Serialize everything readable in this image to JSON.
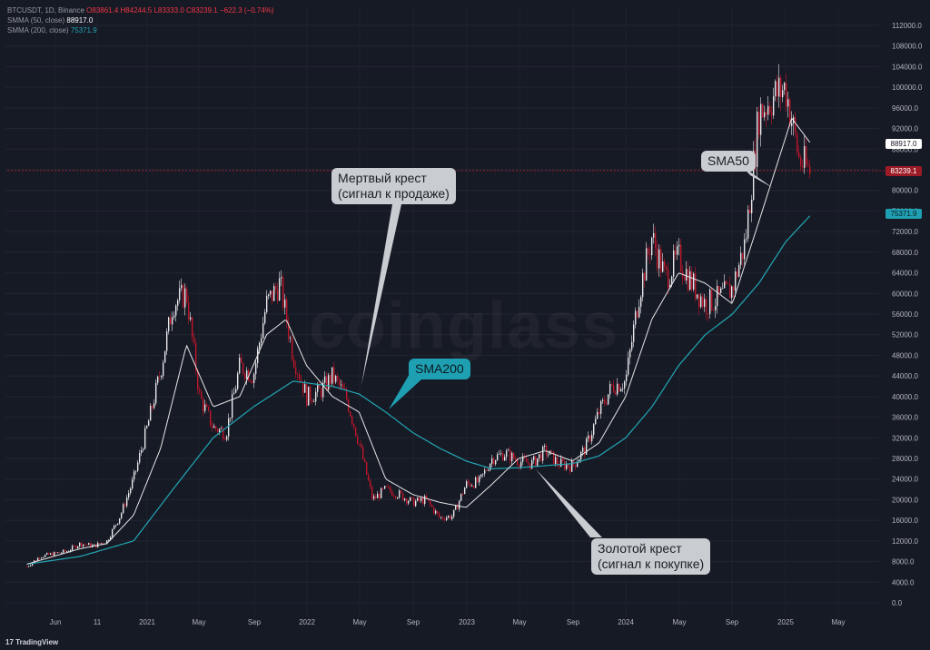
{
  "legend": {
    "symbol_line": "BTCUSDT, 1D, Binance",
    "ohlc": "O83861.4 H84244.5 L83333.0 C83239.1 −622.3 (−0.74%)",
    "sma50_label": "SMMA (50, close)",
    "sma50_value": "88917.0",
    "sma200_label": "SMMA (200, close)",
    "sma200_value": "75371.9"
  },
  "watermark": "coinglass",
  "price_tags": {
    "sma50": "88917.0",
    "last": "83239.1",
    "sma200": "75371.9"
  },
  "callouts": {
    "death_cross": [
      "Мертвый крест",
      "(сигнал к продаже)"
    ],
    "golden_cross": [
      "Золотой крест",
      "(сигнал к покупке)"
    ],
    "sma200": "SMA200",
    "sma50": "SMA50"
  },
  "footer": "TradingView",
  "colors": {
    "background": "#161a25",
    "candle_up": "#e8e8ea",
    "candle_down": "#c0152a",
    "sma50": "#e6e6e6",
    "sma200": "#22a7b5",
    "last_price": "#9c1b27"
  },
  "chart_data": {
    "type": "line",
    "title": "",
    "x_ticks": [
      "Jun",
      "11",
      "2021",
      "May",
      "Sep",
      "2022",
      "May",
      "Sep",
      "2023",
      "May",
      "Sep",
      "2024",
      "May",
      "Sep",
      "2025",
      "May"
    ],
    "y_ticks": [
      0,
      4000,
      8000,
      12000,
      16000,
      20000,
      24000,
      28000,
      32000,
      36000,
      40000,
      44000,
      48000,
      52000,
      56000,
      60000,
      64000,
      68000,
      72000,
      76000,
      80000,
      84000,
      88000,
      92000,
      96000,
      100000,
      104000,
      108000,
      112000
    ],
    "ylim": [
      -2000,
      116000
    ],
    "series": [
      {
        "name": "BTCUSDT",
        "x": [
          "2020-04-01",
          "2020-05-01",
          "2020-06-01",
          "2020-07-01",
          "2020-08-01",
          "2020-09-01",
          "2020-10-01",
          "2020-11-01",
          "2020-12-01",
          "2021-01-01",
          "2021-02-01",
          "2021-03-01",
          "2021-04-01",
          "2021-05-01",
          "2021-06-01",
          "2021-07-01",
          "2021-08-01",
          "2021-09-01",
          "2021-10-01",
          "2021-11-01",
          "2021-12-01",
          "2022-01-01",
          "2022-02-01",
          "2022-03-01",
          "2022-04-01",
          "2022-05-01",
          "2022-06-01",
          "2022-07-01",
          "2022-08-01",
          "2022-09-01",
          "2022-10-01",
          "2022-11-01",
          "2022-12-01",
          "2023-01-01",
          "2023-02-01",
          "2023-03-01",
          "2023-04-01",
          "2023-05-01",
          "2023-06-01",
          "2023-07-01",
          "2023-08-01",
          "2023-09-01",
          "2023-10-01",
          "2023-11-01",
          "2023-12-01",
          "2024-01-01",
          "2024-02-01",
          "2024-03-01",
          "2024-04-01",
          "2024-05-01",
          "2024-06-01",
          "2024-07-01",
          "2024-08-01",
          "2024-09-01",
          "2024-10-01",
          "2024-11-01",
          "2024-12-01",
          "2025-01-01",
          "2025-02-01",
          "2025-03-01"
        ],
        "values": [
          7000,
          9000,
          9500,
          10000,
          11500,
          11000,
          12000,
          17000,
          24000,
          34000,
          45000,
          58000,
          60000,
          40000,
          34000,
          33000,
          46000,
          44000,
          58000,
          62000,
          48000,
          40000,
          41000,
          44000,
          40000,
          31000,
          20000,
          22000,
          21000,
          19500,
          20000,
          16500,
          16800,
          23000,
          23500,
          28000,
          29000,
          27500,
          27000,
          29500,
          27000,
          26500,
          30000,
          37000,
          42000,
          43000,
          60000,
          71000,
          63000,
          67000,
          62000,
          58000,
          59000,
          61000,
          70000,
          95000,
          98000,
          100000,
          86000,
          83239
        ]
      },
      {
        "name": "SMA50",
        "x": [
          "2020-04-01",
          "2020-06-01",
          "2020-08-01",
          "2020-10-01",
          "2020-12-01",
          "2021-02-01",
          "2021-04-01",
          "2021-06-01",
          "2021-08-01",
          "2021-10-01",
          "2021-11-15",
          "2022-01-01",
          "2022-03-01",
          "2022-05-01",
          "2022-07-01",
          "2022-09-01",
          "2022-11-01",
          "2023-01-01",
          "2023-03-01",
          "2023-05-01",
          "2023-07-01",
          "2023-09-01",
          "2023-11-01",
          "2024-01-01",
          "2024-03-01",
          "2024-05-01",
          "2024-07-01",
          "2024-09-01",
          "2024-11-01",
          "2025-01-15",
          "2025-03-01"
        ],
        "values": [
          7500,
          9000,
          10500,
          11500,
          17000,
          30000,
          50000,
          38000,
          40000,
          52000,
          55000,
          46000,
          40000,
          37000,
          24000,
          21000,
          19500,
          18500,
          23000,
          28000,
          29500,
          27500,
          31000,
          40000,
          55000,
          64000,
          62000,
          58000,
          74000,
          94000,
          88917
        ]
      },
      {
        "name": "SMA200",
        "x": [
          "2020-04-01",
          "2020-08-01",
          "2020-12-01",
          "2021-03-01",
          "2021-06-01",
          "2021-09-01",
          "2021-12-01",
          "2022-03-01",
          "2022-05-01",
          "2022-07-01",
          "2022-09-01",
          "2022-11-01",
          "2023-01-01",
          "2023-03-01",
          "2023-05-01",
          "2023-07-01",
          "2023-09-01",
          "2023-11-01",
          "2024-01-01",
          "2024-03-01",
          "2024-05-01",
          "2024-07-01",
          "2024-09-01",
          "2024-11-01",
          "2025-01-01",
          "2025-03-01"
        ],
        "values": [
          7500,
          9000,
          12000,
          22000,
          32000,
          38000,
          43000,
          42000,
          40500,
          37000,
          33000,
          30000,
          27500,
          26000,
          26200,
          26600,
          27000,
          28500,
          32000,
          38000,
          46000,
          52000,
          56000,
          62000,
          70000,
          75371.9
        ]
      }
    ]
  }
}
